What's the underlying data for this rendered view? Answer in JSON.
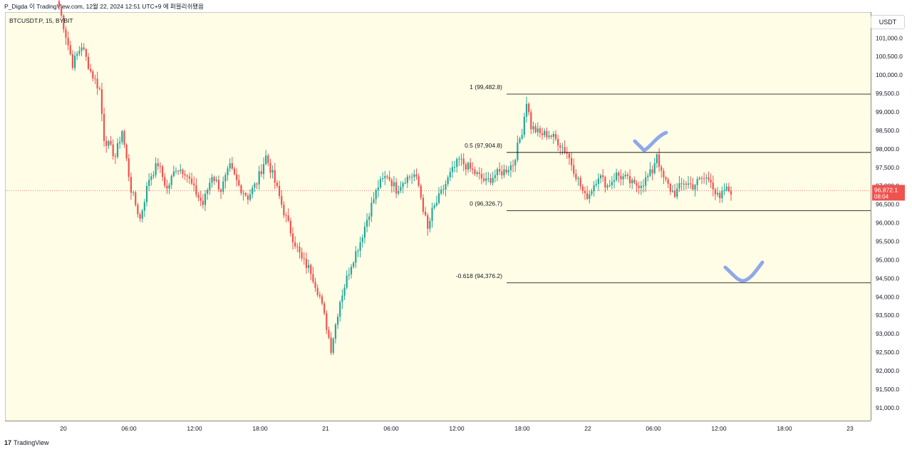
{
  "header": {
    "text": "P_Digda 이 TradingView.com, 12월 22, 2024 12:51 UTC+9 에 퍼블리쉬됐음"
  },
  "chart": {
    "symbol": "BTCUSDT.P, 15, BYBIT",
    "currency": "USDT"
  },
  "footer": {
    "logo_glyph": "17",
    "brand": "TradingView"
  },
  "colors": {
    "up": "#26a69a",
    "down": "#ef5350",
    "background": "#fffde6",
    "fib_line": "#000000",
    "marker": "#8fa8ea"
  },
  "chart_data": {
    "type": "candlestick",
    "title": "",
    "symbol": "BTCUSDT.P",
    "interval": "15",
    "exchange": "BYBIT",
    "y_tick_labels": [
      "91,000.0",
      "91,500.0",
      "92,000.0",
      "92,500.0",
      "93,000.0",
      "93,500.0",
      "94,000.0",
      "94,500.0",
      "95,000.0",
      "95,500.0",
      "96,000.0",
      "96,500.0",
      "97,000.0",
      "97,500.0",
      "98,000.0",
      "98,500.0",
      "99,000.0",
      "99,500.0",
      "100,000.0",
      "100,500.0",
      "101,000.0"
    ],
    "ylim": [
      90650,
      101700
    ],
    "x_tick_labels": [
      "20",
      "06:00",
      "12:00",
      "18:00",
      "21",
      "06:00",
      "12:00",
      "18:00",
      "22",
      "06:00",
      "12:00",
      "18:00",
      "23"
    ],
    "last_price": {
      "value": 96872.1,
      "label": "96,872.1",
      "countdown": "08:04"
    },
    "fibonacci": [
      {
        "level": "1",
        "price": 99482.8,
        "label": "1 (99,482.8)"
      },
      {
        "level": "0.5",
        "price": 97904.8,
        "label": "0.5 (97,904.8)"
      },
      {
        "level": "0",
        "price": 96326.7,
        "label": "0 (96,326.7)"
      },
      {
        "level": "-0.618",
        "price": 94376.2,
        "label": "-0.618 (94,376.2)"
      }
    ],
    "annotations": [
      "check-mark-near-97900",
      "check-mark-near-94500"
    ],
    "price_path": [
      [
        0,
        101850
      ],
      [
        6,
        100300
      ],
      [
        10,
        100800
      ],
      [
        14,
        100100
      ],
      [
        18,
        99600
      ],
      [
        20,
        98300
      ],
      [
        25,
        97800
      ],
      [
        28,
        98500
      ],
      [
        32,
        96900
      ],
      [
        36,
        96100
      ],
      [
        40,
        97200
      ],
      [
        44,
        97600
      ],
      [
        48,
        96900
      ],
      [
        52,
        97500
      ],
      [
        56,
        97400
      ],
      [
        60,
        96900
      ],
      [
        64,
        96500
      ],
      [
        68,
        97300
      ],
      [
        72,
        96900
      ],
      [
        76,
        97500
      ],
      [
        80,
        97000
      ],
      [
        84,
        96700
      ],
      [
        88,
        97100
      ],
      [
        92,
        97800
      ],
      [
        95,
        97300
      ],
      [
        100,
        96300
      ],
      [
        104,
        95600
      ],
      [
        108,
        95000
      ],
      [
        112,
        94700
      ],
      [
        116,
        94000
      ],
      [
        119,
        93200
      ],
      [
        121,
        92600
      ],
      [
        125,
        93900
      ],
      [
        130,
        94900
      ],
      [
        134,
        95500
      ],
      [
        138,
        96300
      ],
      [
        142,
        97000
      ],
      [
        146,
        97300
      ],
      [
        150,
        96900
      ],
      [
        154,
        97200
      ],
      [
        158,
        97300
      ],
      [
        160,
        97000
      ],
      [
        162,
        96400
      ],
      [
        164,
        95800
      ],
      [
        166,
        96300
      ],
      [
        170,
        96800
      ],
      [
        174,
        97300
      ],
      [
        178,
        97700
      ],
      [
        182,
        97500
      ],
      [
        186,
        97300
      ],
      [
        190,
        97100
      ],
      [
        194,
        97300
      ],
      [
        198,
        97400
      ],
      [
        202,
        97600
      ],
      [
        206,
        98500
      ],
      [
        208,
        99300
      ],
      [
        210,
        98600
      ],
      [
        214,
        98400
      ],
      [
        218,
        98400
      ],
      [
        222,
        98200
      ],
      [
        226,
        97900
      ],
      [
        230,
        97300
      ],
      [
        234,
        96700
      ],
      [
        236,
        96800
      ],
      [
        240,
        97300
      ],
      [
        244,
        97000
      ],
      [
        248,
        97300
      ],
      [
        252,
        97200
      ],
      [
        256,
        97000
      ],
      [
        260,
        97100
      ],
      [
        264,
        97400
      ],
      [
        266,
        97900
      ],
      [
        268,
        97300
      ],
      [
        272,
        96900
      ],
      [
        274,
        96800
      ],
      [
        278,
        97100
      ],
      [
        282,
        97000
      ],
      [
        286,
        97200
      ],
      [
        290,
        97200
      ],
      [
        292,
        96800
      ],
      [
        294,
        96600
      ],
      [
        296,
        96900
      ],
      [
        298,
        96872
      ]
    ]
  }
}
